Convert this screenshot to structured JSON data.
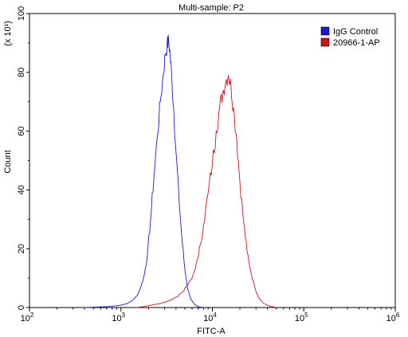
{
  "chart_data": {
    "type": "line",
    "title": "Multi-sample: P2",
    "xlabel": "FITC-A",
    "ylabel": "Count",
    "y_multiplier": "(x 10¹)",
    "x_scale": "log",
    "xlim": [
      100,
      1000000
    ],
    "ylim": [
      0,
      100
    ],
    "x_ticks": [
      {
        "base": "10",
        "exp": "2"
      },
      {
        "base": "10",
        "exp": "3"
      },
      {
        "base": "10",
        "exp": "4"
      },
      {
        "base": "10",
        "exp": "5"
      },
      {
        "base": "10",
        "exp": "6"
      }
    ],
    "y_ticks": [
      "0",
      "20",
      "40",
      "60",
      "80",
      "100"
    ],
    "legend_position": "top-right",
    "series": [
      {
        "name": "IgG Control",
        "color": "#1a1acc",
        "points": [
          [
            400,
            0
          ],
          [
            700,
            0.3
          ],
          [
            900,
            0.6
          ],
          [
            1000,
            0.8
          ],
          [
            1200,
            1.5
          ],
          [
            1350,
            2.5
          ],
          [
            1500,
            4
          ],
          [
            1650,
            7
          ],
          [
            1800,
            11
          ],
          [
            1950,
            18
          ],
          [
            2100,
            29
          ],
          [
            2300,
            45
          ],
          [
            2500,
            58
          ],
          [
            2700,
            70
          ],
          [
            2900,
            79
          ],
          [
            3050,
            86
          ],
          [
            3200,
            89
          ],
          [
            3320,
            91
          ],
          [
            3450,
            86
          ],
          [
            3600,
            78
          ],
          [
            3800,
            66
          ],
          [
            4000,
            53
          ],
          [
            4300,
            38
          ],
          [
            4600,
            25
          ],
          [
            5000,
            13
          ],
          [
            5400,
            6
          ],
          [
            5900,
            2.5
          ],
          [
            6400,
            1
          ],
          [
            7000,
            0.3
          ],
          [
            8000,
            0
          ]
        ]
      },
      {
        "name": "20966-1-AP",
        "color": "#c8141e",
        "points": [
          [
            1500,
            0
          ],
          [
            2000,
            0.6
          ],
          [
            2500,
            1.2
          ],
          [
            3000,
            1.8
          ],
          [
            3500,
            2.5
          ],
          [
            4000,
            3.5
          ],
          [
            4600,
            5
          ],
          [
            5200,
            7
          ],
          [
            6000,
            10
          ],
          [
            7000,
            17
          ],
          [
            8000,
            28
          ],
          [
            9000,
            39
          ],
          [
            10000,
            49
          ],
          [
            11000,
            60
          ],
          [
            12000,
            68
          ],
          [
            13000,
            73
          ],
          [
            14000,
            77
          ],
          [
            15000,
            79
          ],
          [
            16000,
            75
          ],
          [
            17000,
            68
          ],
          [
            18500,
            57
          ],
          [
            20000,
            43
          ],
          [
            22000,
            29
          ],
          [
            24000,
            19
          ],
          [
            26000,
            13
          ],
          [
            29000,
            7
          ],
          [
            32000,
            3.5
          ],
          [
            36000,
            1.5
          ],
          [
            42000,
            0.5
          ],
          [
            50000,
            0
          ]
        ]
      }
    ]
  }
}
